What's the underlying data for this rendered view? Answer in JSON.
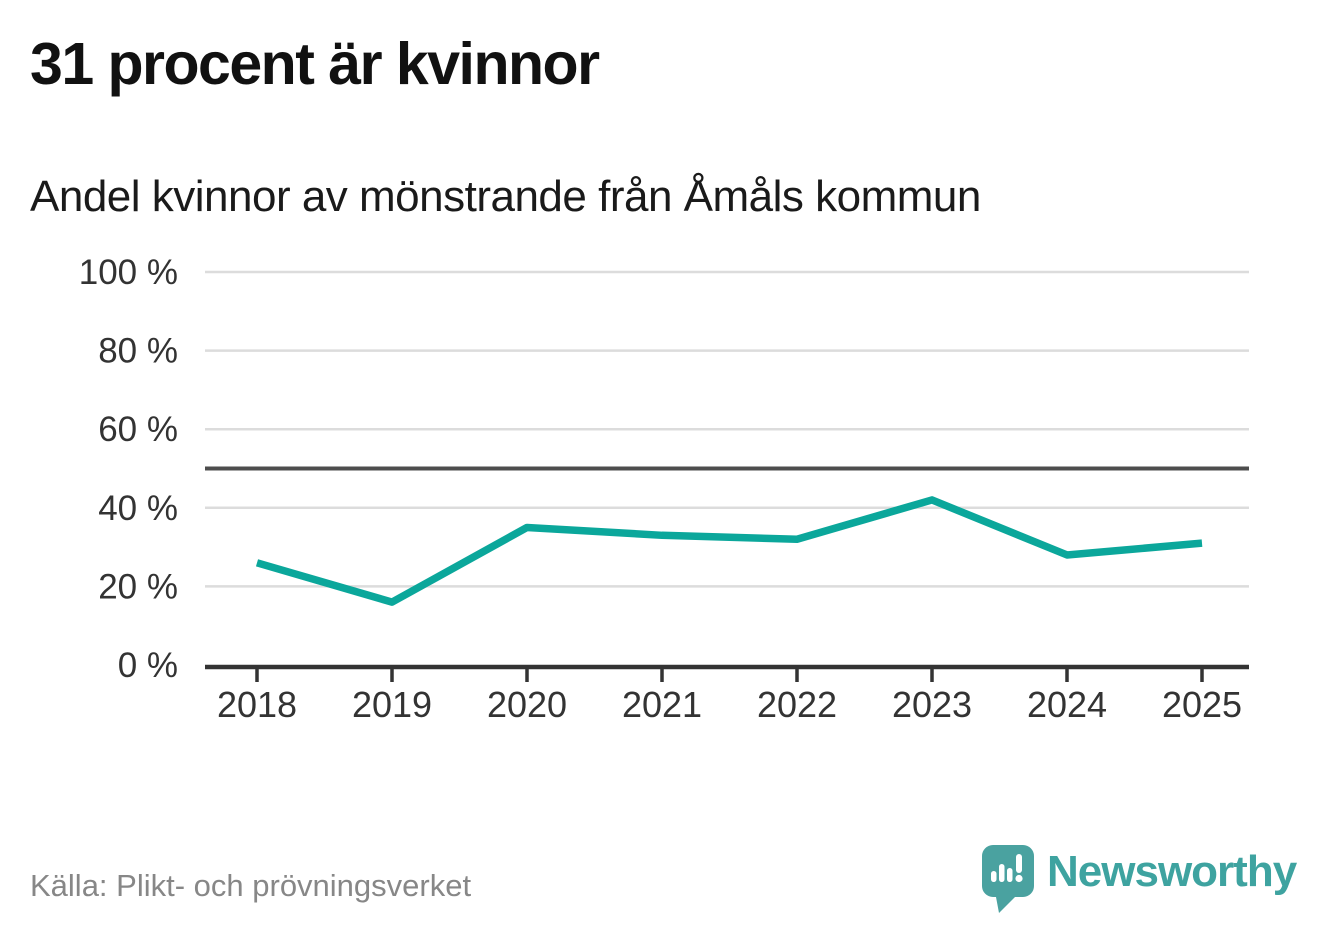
{
  "header": {
    "title": "31 procent är kvinnor",
    "subtitle": "Andel kvinnor av mönstrande från Åmåls kommun"
  },
  "chart_data": {
    "type": "line",
    "title": "31 procent är kvinnor",
    "subtitle": "Andel kvinnor av mönstrande från Åmåls kommun",
    "x": [
      "2018",
      "2019",
      "2020",
      "2021",
      "2022",
      "2023",
      "2024",
      "2025"
    ],
    "series": [
      {
        "name": "Andel kvinnor av mönstrande",
        "values": [
          26,
          16,
          35,
          33,
          32,
          42,
          28,
          31
        ],
        "color": "#0ba79b"
      }
    ],
    "unit": "%",
    "ylim": [
      0,
      100
    ],
    "yticks": [
      0,
      20,
      40,
      60,
      80,
      100
    ],
    "ytick_suffix": " %",
    "reference_line_y": 50,
    "grid": true,
    "legend": "none"
  },
  "colors": {
    "accent_teal": "#0ba79b",
    "logo_teal": "#3ea3a0",
    "grid": "#dcdcdc",
    "reference_line": "#4d4d4d",
    "axis": "#333333",
    "tick_label": "#333333",
    "title_text": "#111111",
    "source_text": "#878787"
  },
  "footer": {
    "source": "Källa: Plikt- och prövningsverket",
    "brand": "Newsworthy"
  }
}
